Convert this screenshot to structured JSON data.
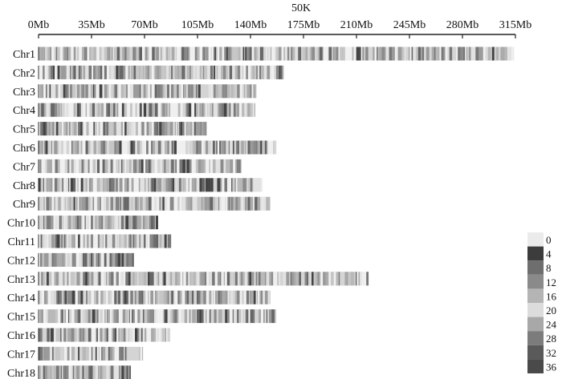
{
  "chart_data": {
    "type": "heatmap",
    "title": "50K",
    "xlabel": "",
    "ylabel": "",
    "x_unit": "Mb",
    "xlim": [
      0,
      315
    ],
    "x_ticks": [
      0,
      35,
      70,
      105,
      140,
      175,
      210,
      245,
      280,
      315
    ],
    "x_tick_labels": [
      "0Mb",
      "35Mb",
      "70Mb",
      "105Mb",
      "140Mb",
      "175Mb",
      "210Mb",
      "245Mb",
      "280Mb",
      "315Mb"
    ],
    "bin_size": "50K",
    "grid": false,
    "legend": {
      "placement": "right-bottom",
      "labels": [
        "0",
        "4",
        "8",
        "12",
        "16",
        "20",
        "24",
        "28",
        "32",
        "36"
      ],
      "colors": [
        "#ebebeb",
        "#3c3c3c",
        "#6e6e6e",
        "#8a8a8a",
        "#b4b4b4",
        "#dcdcdc",
        "#a8a8a8",
        "#7c7c7c",
        "#5a5a5a",
        "#4a4a4a"
      ]
    },
    "chromosomes": [
      {
        "name": "Chr1",
        "length_mb": 314
      },
      {
        "name": "Chr2",
        "length_mb": 162
      },
      {
        "name": "Chr3",
        "length_mb": 144
      },
      {
        "name": "Chr4",
        "length_mb": 143
      },
      {
        "name": "Chr5",
        "length_mb": 111
      },
      {
        "name": "Chr6",
        "length_mb": 157
      },
      {
        "name": "Chr7",
        "length_mb": 134
      },
      {
        "name": "Chr8",
        "length_mb": 148
      },
      {
        "name": "Chr9",
        "length_mb": 153
      },
      {
        "name": "Chr10",
        "length_mb": 79
      },
      {
        "name": "Chr11",
        "length_mb": 88
      },
      {
        "name": "Chr12",
        "length_mb": 63
      },
      {
        "name": "Chr13",
        "length_mb": 218
      },
      {
        "name": "Chr14",
        "length_mb": 153
      },
      {
        "name": "Chr15",
        "length_mb": 157
      },
      {
        "name": "Chr16",
        "length_mb": 87
      },
      {
        "name": "Chr17",
        "length_mb": 69
      },
      {
        "name": "Chr18",
        "length_mb": 61
      }
    ]
  }
}
